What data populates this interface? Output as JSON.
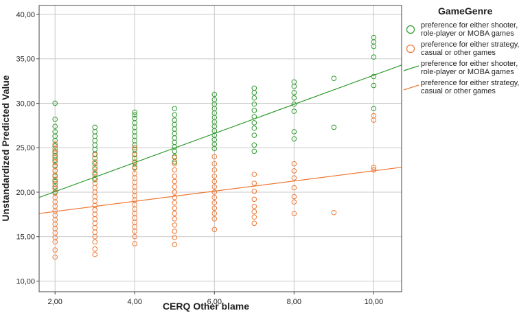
{
  "chart_data": {
    "type": "scatter",
    "xlabel": "CERQ Other blame",
    "ylabel": "Unstandardized Predicted Value",
    "xlim": [
      1.6,
      10.7
    ],
    "ylim": [
      8.8,
      41.0
    ],
    "x_ticks": [
      2,
      4,
      6,
      8,
      10
    ],
    "x_tick_labels": [
      "2,00",
      "4,00",
      "6,00",
      "8,00",
      "10,00"
    ],
    "y_ticks": [
      10,
      15,
      20,
      25,
      30,
      35,
      40
    ],
    "y_tick_labels": [
      "10,00",
      "15,00",
      "20,00",
      "25,00",
      "30,00",
      "35,00",
      "40,00"
    ],
    "grid": true,
    "legend_position": "right",
    "legend_title": "GameGenre",
    "colors": {
      "green": "#2e9a2e",
      "orange": "#ee7733"
    },
    "series": [
      {
        "name": "preference for either shooter, role-player or MOBA games",
        "kind": "points",
        "color": "#2e9a2e",
        "points": [
          {
            "x": 2,
            "y": [
              20.0,
              20.6,
              21.2,
              21.8,
              22.4,
              23.0,
              23.6,
              24.1,
              24.6,
              25.2,
              25.8,
              26.3,
              26.8,
              27.4,
              28.2,
              30.0
            ]
          },
          {
            "x": 3,
            "y": [
              21.4,
              22.0,
              22.6,
              23.2,
              23.8,
              24.3,
              24.8,
              25.3,
              25.8,
              26.3,
              26.8,
              27.3
            ]
          },
          {
            "x": 4,
            "y": [
              22.8,
              23.3,
              23.8,
              24.3,
              24.8,
              25.3,
              25.8,
              26.3,
              26.8,
              27.3,
              27.8,
              28.3,
              28.7,
              29.0
            ]
          },
          {
            "x": 5,
            "y": [
              23.4,
              24.0,
              24.6,
              25.1,
              25.6,
              26.1,
              26.6,
              27.1,
              27.6,
              28.1,
              28.7,
              29.4
            ]
          },
          {
            "x": 6,
            "y": [
              24.9,
              25.4,
              25.9,
              26.4,
              26.9,
              27.4,
              27.9,
              28.4,
              28.9,
              29.4,
              29.9,
              30.4,
              31.0
            ]
          },
          {
            "x": 7,
            "y": [
              24.6,
              25.3,
              26.4,
              27.2,
              27.8,
              28.5,
              29.2,
              29.9,
              30.6,
              31.2,
              31.7
            ]
          },
          {
            "x": 8,
            "y": [
              26.0,
              26.8,
              29.1,
              29.9,
              30.6,
              31.2,
              31.9,
              32.4
            ]
          },
          {
            "x": 9,
            "y": [
              27.3,
              32.8
            ]
          },
          {
            "x": 10,
            "y": [
              29.4,
              32.0,
              33.0,
              35.2,
              36.4,
              36.9,
              37.4
            ]
          }
        ]
      },
      {
        "name": "preference for either strategy, casual or other games",
        "kind": "points",
        "color": "#ee7733",
        "points": [
          {
            "x": 2,
            "y": [
              12.7,
              13.5,
              14.4,
              14.9,
              15.4,
              15.9,
              16.4,
              16.9,
              17.4,
              17.9,
              18.4,
              18.9,
              19.4,
              19.9,
              20.4,
              20.9,
              21.4,
              21.9,
              22.4,
              22.9,
              23.4,
              23.9,
              24.4,
              24.9,
              25.4
            ]
          },
          {
            "x": 3,
            "y": [
              13.0,
              13.6,
              14.4,
              15.0,
              15.5,
              16.0,
              16.5,
              17.0,
              17.5,
              18.0,
              18.5,
              19.0,
              19.5,
              20.0,
              20.5,
              21.0,
              21.6,
              22.2,
              22.8,
              23.4,
              24.2
            ]
          },
          {
            "x": 4,
            "y": [
              14.2,
              15.0,
              15.6,
              16.1,
              16.6,
              17.1,
              17.6,
              18.1,
              18.6,
              19.1,
              19.6,
              20.1,
              20.6,
              21.1,
              21.6,
              22.1,
              22.7,
              23.4,
              24.2,
              25.0
            ]
          },
          {
            "x": 5,
            "y": [
              14.1,
              14.9,
              15.6,
              16.3,
              17.0,
              17.6,
              18.2,
              18.8,
              19.4,
              20.0,
              20.6,
              21.2,
              21.8,
              22.5,
              23.2,
              23.9
            ]
          },
          {
            "x": 6,
            "y": [
              15.8,
              17.0,
              17.6,
              18.2,
              18.8,
              19.4,
              20.0,
              20.6,
              21.2,
              21.8,
              22.5,
              23.2,
              24.0
            ]
          },
          {
            "x": 7,
            "y": [
              16.5,
              17.2,
              17.8,
              18.4,
              19.2,
              20.1,
              21.0,
              22.0
            ]
          },
          {
            "x": 8,
            "y": [
              17.6,
              18.9,
              19.5,
              20.5,
              21.6,
              22.4,
              23.2
            ]
          },
          {
            "x": 9,
            "y": [
              17.7
            ]
          },
          {
            "x": 10,
            "y": [
              22.5,
              22.8,
              28.1,
              28.6
            ]
          }
        ]
      },
      {
        "name": "preference for either shooter, role-player or MOBA games",
        "kind": "fit-line",
        "color": "#2e9a2e",
        "line": {
          "x": [
            1.6,
            10.7
          ],
          "y": [
            19.4,
            34.3
          ]
        }
      },
      {
        "name": "preference for either strategy, casual or other games",
        "kind": "fit-line",
        "color": "#ee7733",
        "line": {
          "x": [
            1.6,
            10.7
          ],
          "y": [
            17.6,
            22.8
          ]
        }
      }
    ]
  }
}
